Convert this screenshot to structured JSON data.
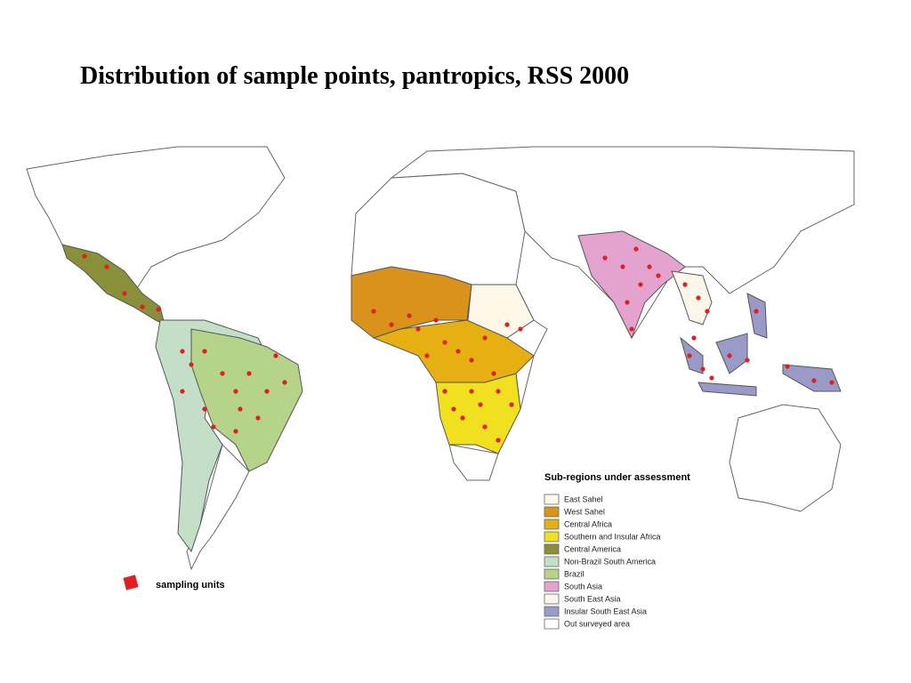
{
  "title": "Distribution of sample points, pantropics, RSS 2000",
  "legend": {
    "title": "Sub-regions under assessment",
    "items": [
      {
        "label": "East Sahel",
        "color": "#fff8e8"
      },
      {
        "label": "West Sahel",
        "color": "#d9921a"
      },
      {
        "label": "Central Africa",
        "color": "#e6b012"
      },
      {
        "label": "Southern and Insular Africa",
        "color": "#f0e020"
      },
      {
        "label": "Central America",
        "color": "#8a8f3a"
      },
      {
        "label": "Non-Brazil South America",
        "color": "#c3dfc8"
      },
      {
        "label": "Brazil",
        "color": "#b5d48a"
      },
      {
        "label": "South Asia",
        "color": "#e4a3cf"
      },
      {
        "label": "South East Asia",
        "color": "#fbf6ea"
      },
      {
        "label": "Insular South East Asia",
        "color": "#9a9ac8"
      },
      {
        "label": "Out surveyed area",
        "color": "#ffffff"
      }
    ]
  },
  "sampling_label": "sampling units"
}
